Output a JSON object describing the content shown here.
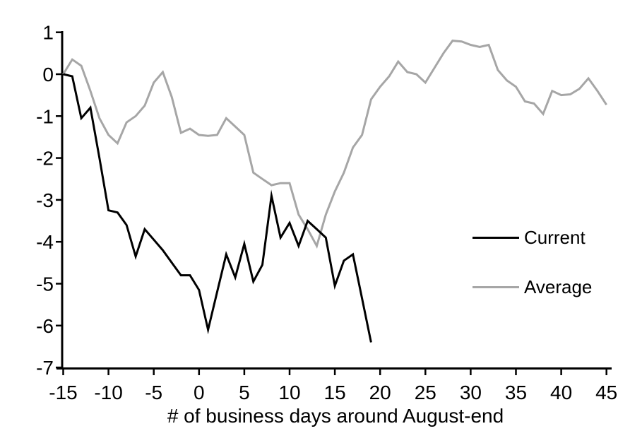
{
  "chart_data": {
    "type": "line",
    "title": "",
    "xlabel": "# of business days around August-end",
    "ylabel": "",
    "xlim": [
      -15,
      45
    ],
    "ylim": [
      -7,
      1
    ],
    "x_ticks": [
      -15,
      -10,
      -5,
      0,
      5,
      10,
      15,
      20,
      25,
      30,
      35,
      40,
      45
    ],
    "y_ticks": [
      1,
      0,
      -1,
      -2,
      -3,
      -4,
      -5,
      -6,
      -7
    ],
    "grid": false,
    "legend_position": "middle-right",
    "axis_color": "#000000",
    "series": [
      {
        "name": "Current",
        "color": "#000000",
        "x": [
          -15,
          -14,
          -13,
          -12,
          -11,
          -10,
          -9,
          -8,
          -7,
          -6,
          -5,
          -4,
          -3,
          -2,
          -1,
          0,
          1,
          2,
          3,
          4,
          5,
          6,
          7,
          8,
          9,
          10,
          11,
          12,
          13,
          14,
          15,
          16,
          17,
          18,
          19
        ],
        "values": [
          0.0,
          -0.05,
          -1.05,
          -0.8,
          -2.0,
          -3.25,
          -3.3,
          -3.6,
          -4.35,
          -3.7,
          -3.95,
          -4.2,
          -4.5,
          -4.8,
          -4.8,
          -5.15,
          -6.1,
          -5.2,
          -4.3,
          -4.85,
          -4.05,
          -4.95,
          -4.55,
          -2.9,
          -3.9,
          -3.55,
          -4.1,
          -3.5,
          -3.7,
          -3.9,
          -5.05,
          -4.45,
          -4.3,
          -5.35,
          -6.4
        ]
      },
      {
        "name": "Average",
        "color": "#a6a6a6",
        "x": [
          -15,
          -14,
          -13,
          -12,
          -11,
          -10,
          -9,
          -8,
          -7,
          -6,
          -5,
          -4,
          -3,
          -2,
          -1,
          0,
          1,
          2,
          3,
          4,
          5,
          6,
          7,
          8,
          9,
          10,
          11,
          12,
          13,
          14,
          15,
          16,
          17,
          18,
          19,
          20,
          21,
          22,
          23,
          24,
          25,
          26,
          27,
          28,
          29,
          30,
          31,
          32,
          33,
          34,
          35,
          36,
          37,
          38,
          39,
          40,
          41,
          42,
          43,
          44,
          45
        ],
        "values": [
          0.0,
          0.35,
          0.2,
          -0.4,
          -1.05,
          -1.45,
          -1.65,
          -1.15,
          -1.0,
          -0.75,
          -0.2,
          0.05,
          -0.55,
          -1.4,
          -1.3,
          -1.45,
          -1.47,
          -1.45,
          -1.05,
          -1.25,
          -1.45,
          -2.35,
          -2.5,
          -2.65,
          -2.6,
          -2.6,
          -3.35,
          -3.7,
          -4.1,
          -3.35,
          -2.8,
          -2.35,
          -1.75,
          -1.45,
          -0.6,
          -0.3,
          -0.05,
          0.3,
          0.05,
          0.0,
          -0.2,
          0.15,
          0.5,
          0.8,
          0.78,
          0.7,
          0.65,
          0.7,
          0.1,
          -0.15,
          -0.3,
          -0.65,
          -0.7,
          -0.95,
          -0.4,
          -0.5,
          -0.48,
          -0.35,
          -0.1,
          -0.4,
          -0.73
        ]
      }
    ]
  }
}
